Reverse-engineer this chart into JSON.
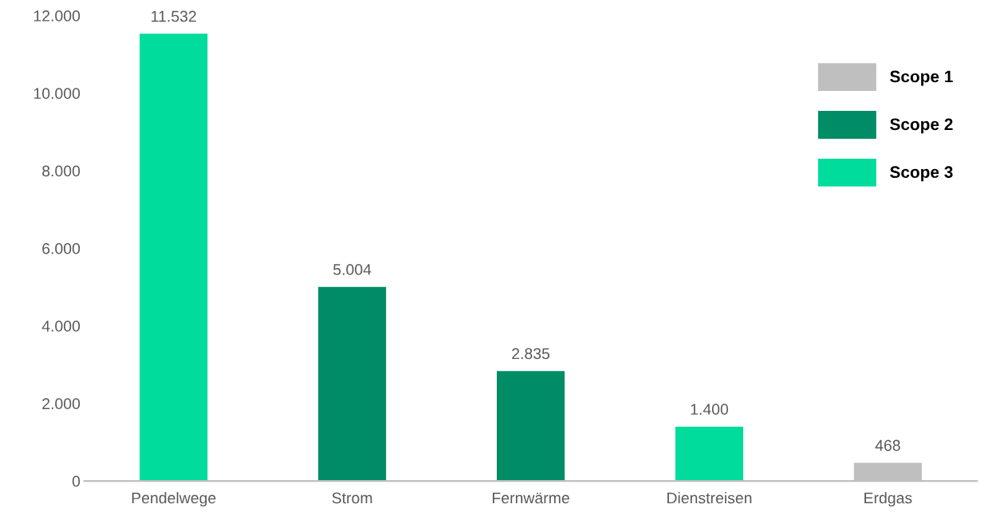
{
  "chart_data": {
    "type": "bar",
    "categories": [
      "Pendelwege",
      "Strom",
      "Fernwärme",
      "Dienstreisen",
      "Erdgas"
    ],
    "series": [
      {
        "name": "Scope 1",
        "color": "#bfbfbf",
        "values": [
          null,
          null,
          null,
          null,
          468
        ],
        "value_labels": [
          null,
          null,
          null,
          null,
          "468"
        ]
      },
      {
        "name": "Scope 2",
        "color": "#008c64",
        "values": [
          null,
          5004,
          2835,
          null,
          null
        ],
        "value_labels": [
          null,
          "5.004",
          "2.835",
          null,
          null
        ]
      },
      {
        "name": "Scope 3",
        "color": "#00dc9b",
        "values": [
          11532,
          null,
          null,
          1400,
          null
        ],
        "value_labels": [
          "11.532",
          null,
          null,
          "1.400",
          null
        ]
      }
    ],
    "ylim": [
      0,
      12000
    ],
    "yticks": [
      {
        "value": 0,
        "label": "0"
      },
      {
        "value": 2000,
        "label": "2.000"
      },
      {
        "value": 4000,
        "label": "4.000"
      },
      {
        "value": 6000,
        "label": "6.000"
      },
      {
        "value": 8000,
        "label": "8.000"
      },
      {
        "value": 10000,
        "label": "10.000"
      },
      {
        "value": 12000,
        "label": "12.000"
      }
    ],
    "grid": false,
    "legend": "top right"
  }
}
